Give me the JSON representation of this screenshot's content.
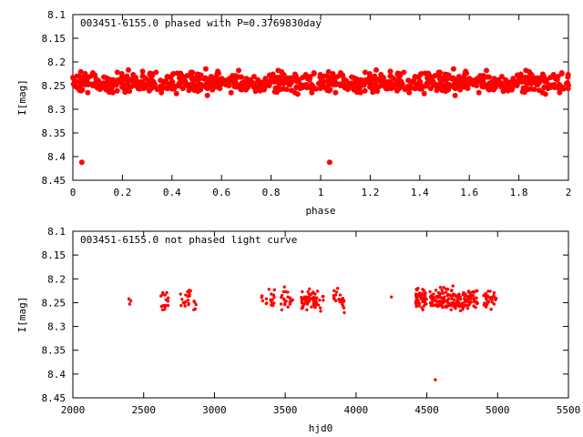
{
  "chart_data": [
    {
      "type": "scatter",
      "title": "003451-6155.0 phased with P=0.3769830day",
      "xlabel": "phase",
      "ylabel": "I[mag]",
      "xlim": [
        0,
        2
      ],
      "ylim": [
        8.1,
        8.45
      ],
      "y_inverted": true,
      "marker_color": "#ff0000",
      "marker_style": "filled-circle-large",
      "grid": false,
      "xticks": [
        "0",
        "0.2",
        "0.4",
        "0.6",
        "0.8",
        "1",
        "1.2",
        "1.4",
        "1.6",
        "1.8",
        "2"
      ],
      "yticks": [
        "8.1",
        "8.15",
        "8.2",
        "8.25",
        "8.3",
        "8.35",
        "8.4",
        "8.45"
      ],
      "x": [],
      "y": []
    },
    {
      "type": "scatter",
      "title": "003451-6155.0 not phased light curve",
      "xlabel": "hjd0",
      "ylabel": "I[mag]",
      "xlim": [
        2000,
        5500
      ],
      "ylim": [
        8.1,
        8.45
      ],
      "y_inverted": true,
      "marker_color": "#ff0000",
      "marker_style": "filled-circle-small",
      "grid": false,
      "xticks": [
        "2000",
        "2500",
        "3000",
        "3500",
        "4000",
        "4500",
        "5000",
        "5500"
      ],
      "yticks": [
        "8.1",
        "8.15",
        "8.2",
        "8.25",
        "8.3",
        "8.35",
        "8.4",
        "8.45"
      ],
      "x": [],
      "y": []
    }
  ]
}
